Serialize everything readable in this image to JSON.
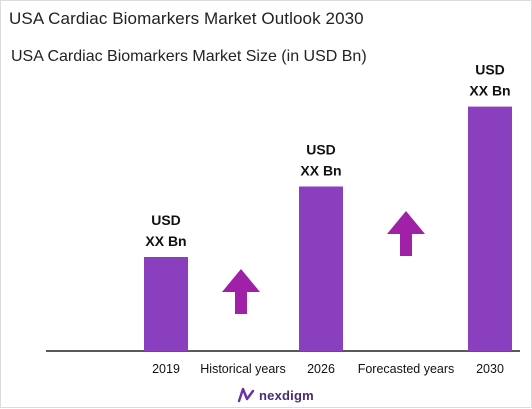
{
  "header": {
    "title": "USA Cardiac Biomarkers Market Outlook 2030",
    "subtitle": "USA Cardiac Biomarkers Market Size (in USD Bn)"
  },
  "colors": {
    "bar": "#8a3fbf",
    "arrow": "#a020a8",
    "axis": "#222222"
  },
  "chart_data": {
    "type": "bar",
    "categories": [
      "2019",
      "2026",
      "2030"
    ],
    "values": [
      1.0,
      1.75,
      2.6
    ],
    "value_labels": [
      [
        "USD",
        "XX Bn"
      ],
      [
        "USD",
        "XX Bn"
      ],
      [
        "USD",
        "XX Bn"
      ]
    ],
    "annotations": [
      "Historical years",
      "Forecasted years"
    ],
    "arrows": [
      "up",
      "up"
    ],
    "grid": false,
    "legend": "none"
  },
  "footer": {
    "logo_text": "nexdigm",
    "logo_icon": "nexdigm-logo-icon"
  }
}
